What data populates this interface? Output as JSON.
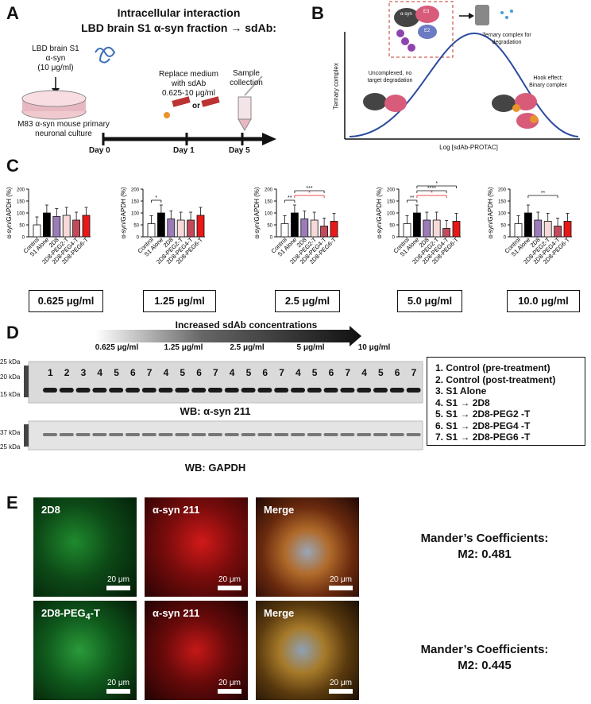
{
  "panels": {
    "A": "A",
    "B": "B",
    "C": "C",
    "D": "D",
    "E": "E"
  },
  "panelA": {
    "title_line1": "Intracellular interaction",
    "title_line2": "LBD brain S1 α-syn fraction → sdAb:",
    "lbd_line1": "LBD brain S1",
    "lbd_line2": "α-syn",
    "lbd_line3": "(10 μg/ml)",
    "culture_line1": "M83 α-syn mouse primary",
    "culture_line2": "neuronal culture",
    "replace_line1": "Replace medium",
    "replace_line2": "with sdAb",
    "replace_line3": "0.625-10 μg/ml",
    "or_label": "or",
    "sample_line1": "Sample",
    "sample_line2": "collection",
    "day0": "Day 0",
    "day1": "Day 1",
    "day5": "Day 5"
  },
  "panelB": {
    "ylabel": "Ternary complex",
    "xlabel": "Log [sdAb-PROTAC]",
    "ternary_line1": "Ternary complex for",
    "ternary_line2": "degradation",
    "uncomplexed_line1": "Uncomplexed, no",
    "uncomplexed_line2": "target degradation",
    "hook_line1": "Hook effect:",
    "hook_line2": "Binary complex",
    "asyn_label": "α-syn",
    "e3_label": "E3",
    "e2_label": "E2"
  },
  "panelC": {
    "ylabel": "α-syn/GAPDH (%)",
    "categories": [
      "Control",
      "S1 Alone",
      "2D8",
      "2D8-PEG2-T",
      "2D8-PEG4-T",
      "2D8-PEG6-T"
    ],
    "concentrations": [
      "0.625 μg/ml",
      "1.25 μg/ml",
      "2.5 μg/ml",
      "5.0 μg/ml",
      "10.0 μg/ml"
    ],
    "sig_labels": {
      "c2": "*",
      "c3a": "**",
      "c3b": "***",
      "c3c": "*",
      "c4a": "**",
      "c4b": "*",
      "c4c": "****",
      "c4d": "*",
      "c5": "**"
    },
    "colors": {
      "control": "#ffffff",
      "s1": "#000000",
      "d2d8": "#9b7bb8",
      "peg2": "#f7d9d9",
      "peg4": "#c24a5a",
      "peg6": "#e81818"
    }
  },
  "chart_data": [
    {
      "type": "bar",
      "title": "0.625 μg/ml",
      "ylabel": "α-syn/GAPDH (%)",
      "ylim": [
        0,
        200
      ],
      "categories": [
        "Control",
        "S1 Alone",
        "2D8",
        "2D8-PEG2-T",
        "2D8-PEG4-T",
        "2D8-PEG6-T"
      ],
      "values": [
        50,
        100,
        85,
        90,
        70,
        90
      ]
    },
    {
      "type": "bar",
      "title": "1.25 μg/ml",
      "ylabel": "α-syn/GAPDH (%)",
      "ylim": [
        0,
        200
      ],
      "categories": [
        "Control",
        "S1 Alone",
        "2D8",
        "2D8-PEG2-T",
        "2D8-PEG4-T",
        "2D8-PEG6-T"
      ],
      "values": [
        55,
        100,
        75,
        70,
        70,
        90
      ]
    },
    {
      "type": "bar",
      "title": "2.5 μg/ml",
      "ylabel": "α-syn/GAPDH (%)",
      "ylim": [
        0,
        200
      ],
      "categories": [
        "Control",
        "S1 Alone",
        "2D8",
        "2D8-PEG2-T",
        "2D8-PEG4-T",
        "2D8-PEG6-T"
      ],
      "values": [
        55,
        100,
        75,
        70,
        45,
        65
      ]
    },
    {
      "type": "bar",
      "title": "5.0 μg/ml",
      "ylabel": "α-syn/GAPDH (%)",
      "ylim": [
        0,
        200
      ],
      "categories": [
        "Control",
        "S1 Alone",
        "2D8",
        "2D8-PEG2-T",
        "2D8-PEG4-T",
        "2D8-PEG6-T"
      ],
      "values": [
        55,
        100,
        70,
        70,
        35,
        65
      ]
    },
    {
      "type": "bar",
      "title": "10.0 μg/ml",
      "ylabel": "α-syn/GAPDH (%)",
      "ylim": [
        0,
        200
      ],
      "categories": [
        "Control",
        "S1 Alone",
        "2D8",
        "2D8-PEG2-T",
        "2D8-PEG4-T",
        "2D8-PEG6-T"
      ],
      "values": [
        55,
        100,
        70,
        65,
        45,
        65
      ]
    }
  ],
  "panelD": {
    "gradient_label": "Increased sdAb concentrations",
    "conc_labels": [
      "0.625 μg/ml",
      "1.25 μg/ml",
      "2.5 μg/ml",
      "5 μg/ml",
      "10 μg/ml"
    ],
    "kda": [
      "25 kDa",
      "20 kDa",
      "15 kDa",
      "37 kDa",
      "25 kDa"
    ],
    "lanes": [
      "1",
      "2",
      "3",
      "4",
      "5",
      "6",
      "7",
      "4",
      "5",
      "6",
      "7",
      "4",
      "5",
      "6",
      "7",
      "4",
      "5",
      "6",
      "7",
      "4",
      "5",
      "6",
      "7"
    ],
    "wb1": "WB: α-syn 211",
    "wb2": "WB: GAPDH",
    "legend": [
      "1.   Control (pre-treatment)",
      "2.   Control (post-treatment)",
      "3.   S1 Alone",
      "4.   S1 → 2D8",
      "5.   S1 → 2D8-PEG2 -T",
      "6.   S1 → 2D8-PEG4 -T",
      "7.   S1 → 2D8-PEG6 -T"
    ]
  },
  "panelE": {
    "row1": [
      "2D8",
      "α-syn 211",
      "Merge"
    ],
    "row2_first": "2D8-PEG",
    "row2_sub": "4",
    "row2_suffix": "-T",
    "row2": [
      "α-syn 211",
      "Merge"
    ],
    "scale": "20 μm",
    "manders1_title": "Mander’s Coefficients:",
    "manders1_value": "M2: 0.481",
    "manders2_title": "Mander’s Coefficients:",
    "manders2_value": "M2: 0.445"
  }
}
